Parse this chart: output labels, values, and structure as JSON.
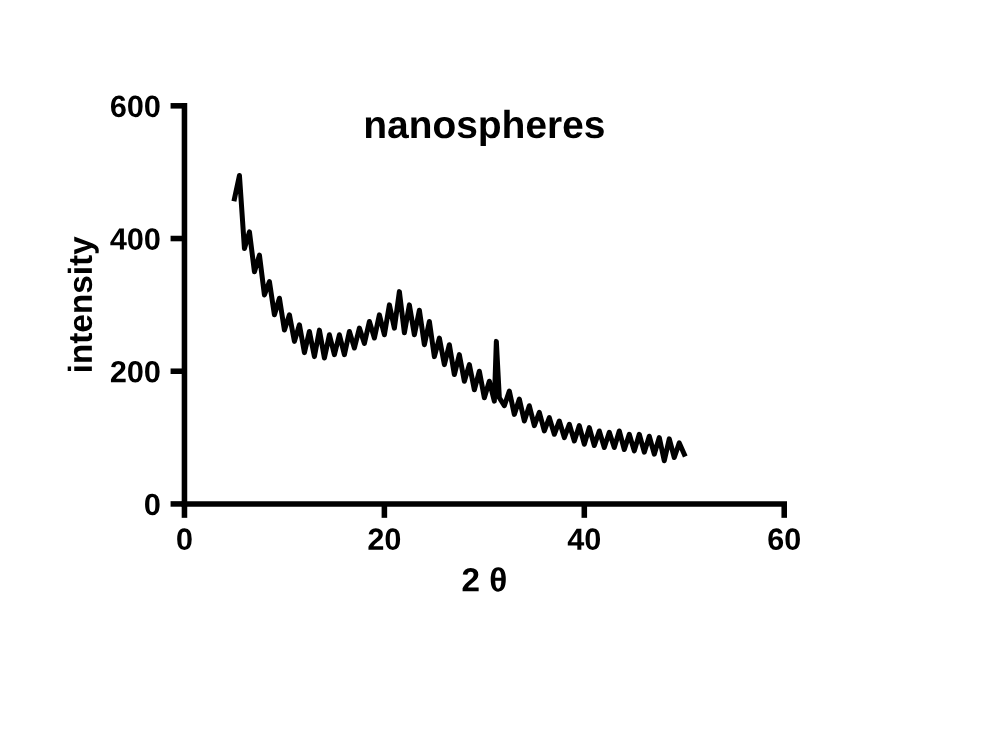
{
  "chart_data": {
    "type": "line",
    "title": "nanospheres",
    "xlabel": "2 θ",
    "ylabel": "intensity",
    "xlim": [
      0,
      60
    ],
    "xticks": [
      0,
      20,
      40,
      60
    ],
    "ylim": [
      0,
      600
    ],
    "yticks": [
      0,
      200,
      400,
      600
    ],
    "grid": false,
    "legend": false,
    "series": [
      {
        "color": "#000000",
        "x": [
          5.0,
          5.5,
          6.0,
          6.5,
          7.0,
          7.5,
          8.0,
          8.5,
          9.0,
          9.5,
          10.0,
          10.5,
          11.0,
          11.5,
          12.0,
          12.5,
          13.0,
          13.5,
          14.0,
          14.5,
          15.0,
          15.5,
          16.0,
          16.5,
          17.0,
          17.5,
          18.0,
          18.5,
          19.0,
          19.5,
          20.0,
          20.5,
          21.0,
          21.5,
          22.0,
          22.5,
          23.0,
          23.5,
          24.0,
          24.5,
          25.0,
          25.5,
          26.0,
          26.5,
          27.0,
          27.5,
          28.0,
          28.5,
          29.0,
          29.5,
          30.0,
          30.5,
          31.0,
          31.2,
          31.5,
          32.0,
          32.5,
          33.0,
          33.5,
          34.0,
          34.5,
          35.0,
          35.5,
          36.0,
          36.5,
          37.0,
          37.5,
          38.0,
          38.5,
          39.0,
          39.5,
          40.0,
          40.5,
          41.0,
          41.5,
          42.0,
          42.5,
          43.0,
          43.5,
          44.0,
          44.5,
          45.0,
          45.5,
          46.0,
          46.5,
          47.0,
          47.5,
          48.0,
          48.5,
          49.0,
          49.5,
          50.0
        ],
        "values": [
          460,
          495,
          385,
          410,
          350,
          375,
          315,
          335,
          285,
          310,
          262,
          285,
          245,
          270,
          228,
          260,
          222,
          262,
          220,
          255,
          225,
          255,
          225,
          260,
          235,
          265,
          242,
          275,
          250,
          285,
          255,
          300,
          265,
          320,
          258,
          300,
          255,
          292,
          240,
          275,
          222,
          250,
          210,
          240,
          195,
          225,
          185,
          210,
          172,
          200,
          160,
          185,
          155,
          245,
          160,
          148,
          170,
          135,
          158,
          125,
          148,
          118,
          138,
          110,
          130,
          105,
          125,
          100,
          120,
          95,
          118,
          90,
          115,
          88,
          110,
          85,
          108,
          85,
          110,
          82,
          105,
          80,
          105,
          78,
          102,
          75,
          100,
          65,
          98,
          70,
          92,
          75
        ]
      }
    ]
  }
}
